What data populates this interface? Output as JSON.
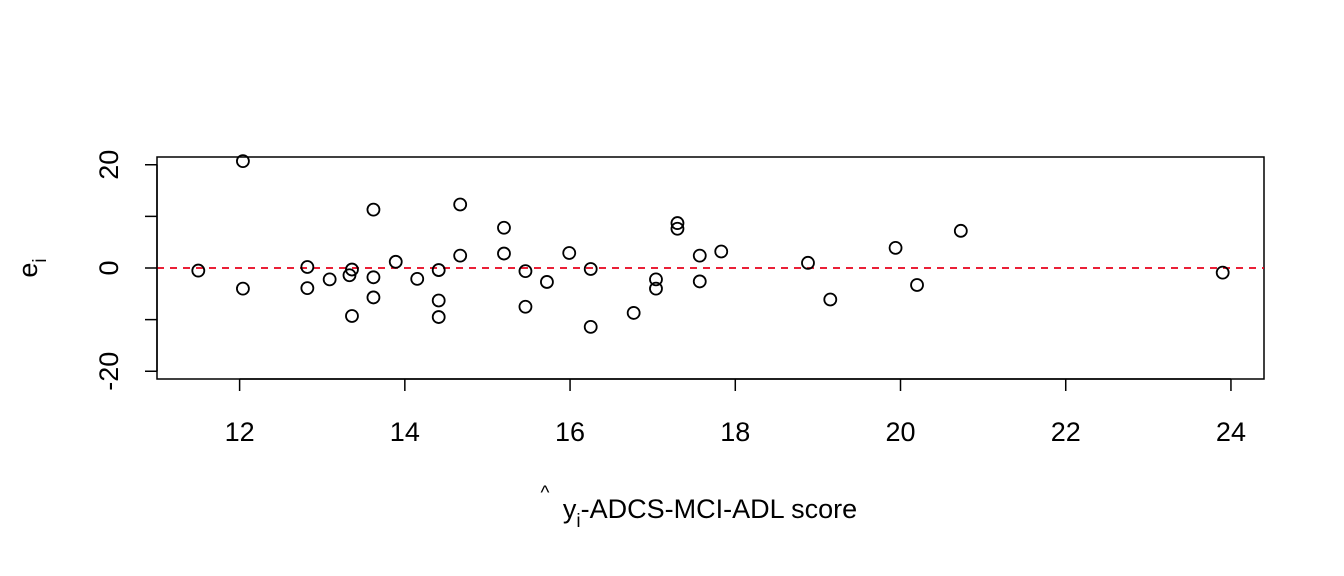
{
  "chart_data": {
    "type": "scatter",
    "title": "",
    "xlabel": {
      "hat": "^",
      "base": "y",
      "subscript": "i",
      "rest": "-ADCS-MCI-ADL score"
    },
    "ylabel": {
      "base": "e",
      "subscript": "i"
    },
    "xlim": [
      11,
      24.4
    ],
    "ylim": [
      -21.5,
      21.5
    ],
    "x_ticks": [
      12,
      14,
      16,
      18,
      20,
      22,
      24
    ],
    "x_tick_labels": [
      "12",
      "14",
      "16",
      "18",
      "20",
      "22",
      "24"
    ],
    "y_ticks": [
      -20,
      0,
      20
    ],
    "y_tick_labels": [
      "-20",
      "0",
      "20"
    ],
    "y_minor_ticks": [
      -10,
      10
    ],
    "reference_line": {
      "y": 0,
      "color": "#e8001b",
      "style": "dashed"
    },
    "point_style": "open-circle",
    "grid": false,
    "points": [
      {
        "x": 11.5,
        "y": -0.5
      },
      {
        "x": 12.04,
        "y": 20.7
      },
      {
        "x": 12.04,
        "y": -4.0
      },
      {
        "x": 12.82,
        "y": 0.2
      },
      {
        "x": 12.82,
        "y": -3.9
      },
      {
        "x": 13.09,
        "y": -2.2
      },
      {
        "x": 13.33,
        "y": -1.4
      },
      {
        "x": 13.36,
        "y": -0.3
      },
      {
        "x": 13.36,
        "y": -9.3
      },
      {
        "x": 13.62,
        "y": 11.3
      },
      {
        "x": 13.62,
        "y": -1.8
      },
      {
        "x": 13.62,
        "y": -5.7
      },
      {
        "x": 13.89,
        "y": 1.2
      },
      {
        "x": 14.15,
        "y": -2.1
      },
      {
        "x": 14.41,
        "y": -0.4
      },
      {
        "x": 14.41,
        "y": -6.3
      },
      {
        "x": 14.41,
        "y": -9.5
      },
      {
        "x": 14.67,
        "y": 12.3
      },
      {
        "x": 14.67,
        "y": 2.4
      },
      {
        "x": 15.2,
        "y": 7.8
      },
      {
        "x": 15.2,
        "y": 2.8
      },
      {
        "x": 15.46,
        "y": -0.6
      },
      {
        "x": 15.46,
        "y": -7.5
      },
      {
        "x": 15.72,
        "y": -2.7
      },
      {
        "x": 15.99,
        "y": 2.9
      },
      {
        "x": 16.25,
        "y": -0.2
      },
      {
        "x": 16.25,
        "y": -11.4
      },
      {
        "x": 16.77,
        "y": -8.7
      },
      {
        "x": 17.04,
        "y": -2.2
      },
      {
        "x": 17.04,
        "y": -4.0
      },
      {
        "x": 17.3,
        "y": 8.7
      },
      {
        "x": 17.3,
        "y": 7.6
      },
      {
        "x": 17.57,
        "y": 2.4
      },
      {
        "x": 17.57,
        "y": -2.6
      },
      {
        "x": 17.83,
        "y": 3.2
      },
      {
        "x": 18.88,
        "y": 1.0
      },
      {
        "x": 19.15,
        "y": -6.1
      },
      {
        "x": 19.94,
        "y": 3.9
      },
      {
        "x": 20.2,
        "y": -3.3
      },
      {
        "x": 20.73,
        "y": 7.2
      },
      {
        "x": 23.9,
        "y": -0.9
      }
    ]
  }
}
